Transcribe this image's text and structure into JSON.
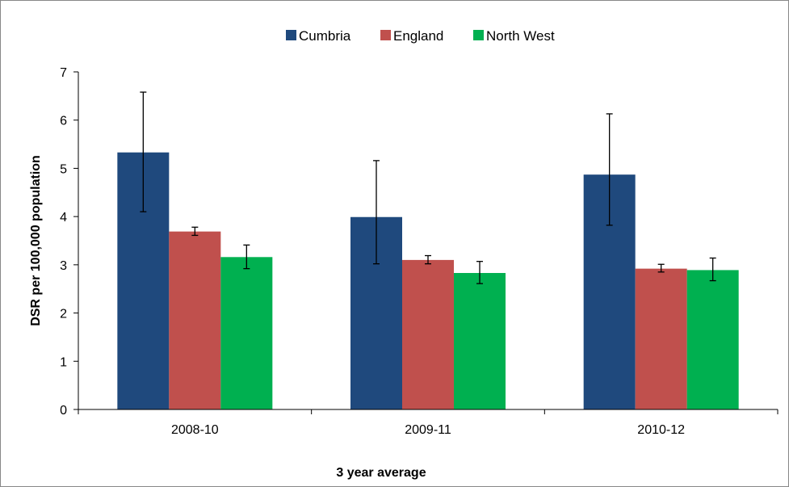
{
  "chart_data": {
    "type": "bar",
    "categories": [
      "2008-10",
      "2009-11",
      "2010-12"
    ],
    "series": [
      {
        "name": "Cumbria",
        "color": "#1F497D",
        "values": [
          5.33,
          3.99,
          4.87
        ],
        "error_low": [
          4.1,
          3.02,
          3.82
        ],
        "error_high": [
          6.58,
          5.16,
          6.13
        ]
      },
      {
        "name": "England",
        "color": "#C0504D",
        "values": [
          3.69,
          3.1,
          2.92
        ],
        "error_low": [
          3.61,
          3.02,
          2.85
        ],
        "error_high": [
          3.78,
          3.19,
          3.01
        ]
      },
      {
        "name": "North West",
        "color": "#00B050",
        "values": [
          3.16,
          2.83,
          2.89
        ],
        "error_low": [
          2.92,
          2.61,
          2.67
        ],
        "error_high": [
          3.41,
          3.07,
          3.14
        ]
      }
    ],
    "xlabel": "3 year average",
    "ylabel": "DSR per 100,000 population",
    "ylim": [
      0,
      7
    ],
    "yticks": [
      0,
      1,
      2,
      3,
      4,
      5,
      6,
      7
    ],
    "grid": false,
    "legend_position": "top"
  }
}
